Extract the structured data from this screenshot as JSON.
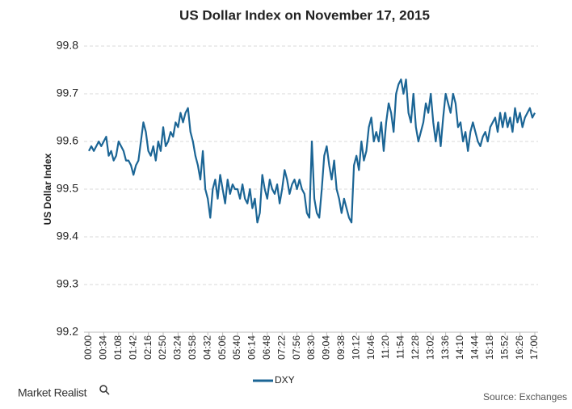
{
  "chart_data": {
    "type": "line",
    "title": "US Dollar Index on November 17, 2015",
    "y_label": "US Dollar Index",
    "source": "Source: Exchanges",
    "brand": "Market Realist",
    "categories": [
      "00:00",
      null,
      null,
      null,
      null,
      null,
      "00:34",
      null,
      null,
      null,
      null,
      null,
      "01:08",
      null,
      null,
      null,
      null,
      null,
      "01:42",
      null,
      null,
      null,
      null,
      null,
      "02:16",
      null,
      null,
      null,
      null,
      null,
      "02:50",
      null,
      null,
      null,
      null,
      null,
      "03:24",
      null,
      null,
      null,
      null,
      null,
      "03:58",
      null,
      null,
      null,
      null,
      null,
      "04:32",
      null,
      null,
      null,
      null,
      null,
      "05:06",
      null,
      null,
      null,
      null,
      null,
      "05:40",
      null,
      null,
      null,
      null,
      null,
      "06:14",
      null,
      null,
      null,
      null,
      null,
      "06:48",
      null,
      null,
      null,
      null,
      null,
      "07:22",
      null,
      null,
      null,
      null,
      null,
      "07:56",
      null,
      null,
      null,
      null,
      null,
      "08:30",
      null,
      null,
      null,
      null,
      null,
      "09:04",
      null,
      null,
      null,
      null,
      null,
      "09:38",
      null,
      null,
      null,
      null,
      null,
      "10:12",
      null,
      null,
      null,
      null,
      null,
      "10:46",
      null,
      null,
      null,
      null,
      null,
      "11:20",
      null,
      null,
      null,
      null,
      null,
      "11:54",
      null,
      null,
      null,
      null,
      null,
      "12:28",
      null,
      null,
      null,
      null,
      null,
      "13:02",
      null,
      null,
      null,
      null,
      null,
      "13:36",
      null,
      null,
      null,
      null,
      null,
      "14:10",
      null,
      null,
      null,
      null,
      null,
      "14:44",
      null,
      null,
      null,
      null,
      null,
      "15:18",
      null,
      null,
      null,
      null,
      null,
      "15:52",
      null,
      null,
      null,
      null,
      null,
      "16:26",
      null,
      null,
      null,
      null,
      null,
      "17:00"
    ],
    "series": [
      {
        "name": "DXY",
        "color": "#1b6595",
        "values": [
          99.58,
          99.59,
          99.58,
          99.59,
          99.6,
          99.59,
          99.6,
          99.61,
          99.57,
          99.58,
          99.56,
          99.57,
          99.6,
          99.59,
          99.58,
          99.56,
          99.56,
          99.55,
          99.53,
          99.55,
          99.56,
          99.6,
          99.64,
          99.62,
          99.58,
          99.57,
          99.59,
          99.56,
          99.6,
          99.58,
          99.63,
          99.59,
          99.6,
          99.62,
          99.61,
          99.64,
          99.63,
          99.66,
          99.64,
          99.66,
          99.67,
          99.62,
          99.6,
          99.57,
          99.55,
          99.52,
          99.58,
          99.5,
          99.48,
          99.44,
          99.5,
          99.52,
          99.48,
          99.53,
          99.5,
          99.47,
          99.52,
          99.49,
          99.51,
          99.5,
          99.5,
          99.48,
          99.51,
          99.48,
          99.47,
          99.5,
          99.46,
          99.48,
          99.43,
          99.45,
          99.53,
          99.5,
          99.48,
          99.52,
          99.5,
          99.49,
          99.51,
          99.47,
          99.5,
          99.54,
          99.52,
          99.49,
          99.51,
          99.52,
          99.5,
          99.52,
          99.5,
          99.49,
          99.45,
          99.44,
          99.6,
          99.48,
          99.45,
          99.44,
          99.5,
          99.57,
          99.59,
          99.55,
          99.52,
          99.56,
          99.5,
          99.48,
          99.45,
          99.48,
          99.46,
          99.44,
          99.43,
          99.55,
          99.57,
          99.54,
          99.6,
          99.56,
          99.58,
          99.63,
          99.65,
          99.6,
          99.62,
          99.6,
          99.64,
          99.58,
          99.64,
          99.68,
          99.66,
          99.62,
          99.7,
          99.72,
          99.73,
          99.7,
          99.73,
          99.66,
          99.64,
          99.7,
          99.63,
          99.6,
          99.62,
          99.64,
          99.68,
          99.66,
          99.7,
          99.64,
          99.6,
          99.64,
          99.59,
          99.65,
          99.7,
          99.68,
          99.66,
          99.7,
          99.68,
          99.63,
          99.64,
          99.6,
          99.62,
          99.58,
          99.62,
          99.64,
          99.62,
          99.6,
          99.59,
          99.61,
          99.62,
          99.6,
          99.63,
          99.64,
          99.65,
          99.62,
          99.66,
          99.63,
          99.66,
          99.63,
          99.65,
          99.62,
          99.67,
          99.64,
          99.66,
          99.63,
          99.65,
          99.66,
          99.67,
          99.65,
          99.66
        ]
      }
    ],
    "ylim": [
      99.2,
      99.8
    ],
    "yticks": [
      99.2,
      99.3,
      99.4,
      99.5,
      99.6,
      99.7,
      99.8
    ],
    "grid": true,
    "legend": "bottom"
  }
}
